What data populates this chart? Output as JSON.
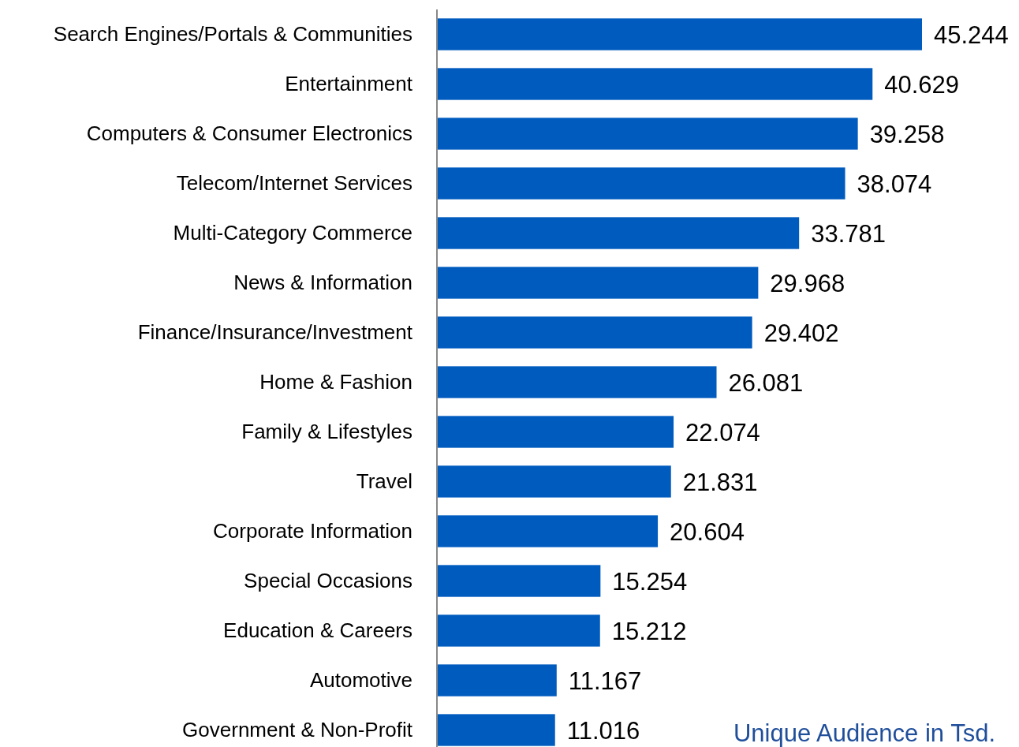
{
  "chart_data": {
    "type": "bar",
    "orientation": "horizontal",
    "categories": [
      "Search Engines/Portals & Communities",
      "Entertainment",
      "Computers & Consumer Electronics",
      "Telecom/Internet Services",
      "Multi-Category Commerce",
      "News & Information",
      "Finance/Insurance/Investment",
      "Home & Fashion",
      "Family & Lifestyles",
      "Travel",
      "Corporate Information",
      "Special Occasions",
      "Education & Careers",
      "Automotive",
      "Government & Non-Profit"
    ],
    "values": [
      45.244,
      40.629,
      39.258,
      38.074,
      33.781,
      29.968,
      29.402,
      26.081,
      22.074,
      21.831,
      20.604,
      15.254,
      15.212,
      11.167,
      11.016
    ],
    "color": "#005bbf",
    "data_labels": true,
    "tick_labels": "y",
    "annotations": [
      "Unique Audience in Tsd."
    ]
  }
}
